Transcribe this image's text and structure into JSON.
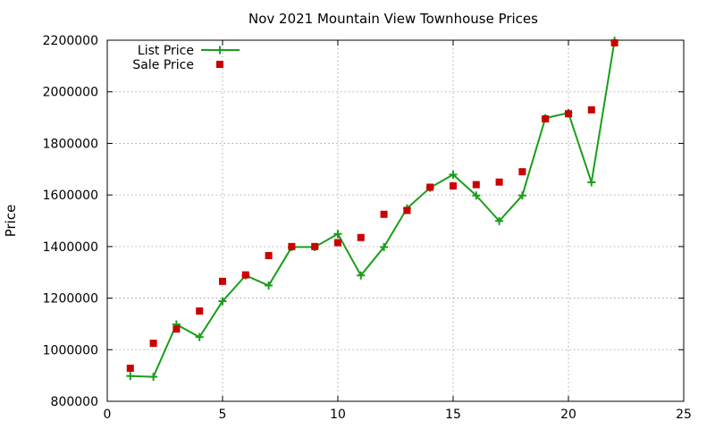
{
  "chart_data": {
    "type": "line",
    "title": "Nov 2021 Mountain View Townhouse Prices",
    "xlabel": "",
    "ylabel": "Price",
    "xlim": [
      0,
      25
    ],
    "ylim": [
      800000,
      2200000
    ],
    "x_ticks": [
      0,
      5,
      10,
      15,
      20,
      25
    ],
    "y_ticks": [
      800000,
      1000000,
      1200000,
      1400000,
      1600000,
      1800000,
      2000000,
      2200000
    ],
    "grid": true,
    "legend_position": "top-left",
    "series": [
      {
        "name": "List Price",
        "style": "line-plus",
        "color": "#1a9e1a",
        "points": [
          [
            1,
            898000
          ],
          [
            2,
            895000
          ],
          [
            3,
            1098000
          ],
          [
            4,
            1049000
          ],
          [
            5,
            1188000
          ],
          [
            6,
            1288000
          ],
          [
            7,
            1249000
          ],
          [
            8,
            1398000
          ],
          [
            9,
            1398000
          ],
          [
            10,
            1449000
          ],
          [
            11,
            1288000
          ],
          [
            12,
            1398000
          ],
          [
            13,
            1548000
          ],
          [
            14,
            1628000
          ],
          [
            15,
            1679000
          ],
          [
            16,
            1598000
          ],
          [
            17,
            1499000
          ],
          [
            18,
            1598000
          ],
          [
            19,
            1898000
          ],
          [
            20,
            1918000
          ],
          [
            21,
            1649000
          ],
          [
            22,
            2198000
          ]
        ]
      },
      {
        "name": "Sale Price",
        "style": "square",
        "color": "#cc0000",
        "points": [
          [
            1,
            928000
          ],
          [
            2,
            1025000
          ],
          [
            3,
            1080000
          ],
          [
            4,
            1150000
          ],
          [
            5,
            1265000
          ],
          [
            6,
            1290000
          ],
          [
            7,
            1365000
          ],
          [
            8,
            1400000
          ],
          [
            9,
            1400000
          ],
          [
            10,
            1415000
          ],
          [
            11,
            1435000
          ],
          [
            12,
            1525000
          ],
          [
            13,
            1540000
          ],
          [
            14,
            1630000
          ],
          [
            15,
            1635000
          ],
          [
            16,
            1640000
          ],
          [
            17,
            1650000
          ],
          [
            18,
            1690000
          ],
          [
            19,
            1895000
          ],
          [
            20,
            1915000
          ],
          [
            21,
            1930000
          ],
          [
            22,
            2190000
          ]
        ]
      }
    ]
  }
}
